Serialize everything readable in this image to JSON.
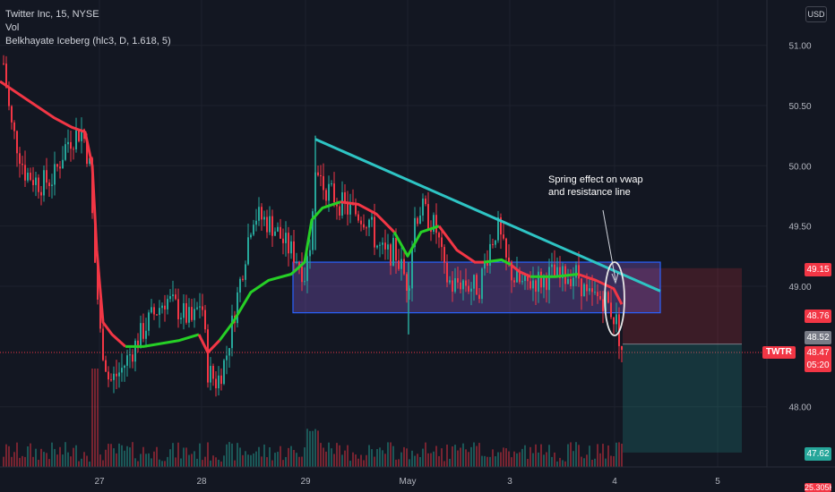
{
  "header": {
    "symbol_line": "Twitter Inc, 15, NYSE",
    "vol_label": "Vol",
    "indicator_line": "Belkhayate Iceberg (hlc3, D, 1.618, 5)",
    "currency": "USD"
  },
  "price_axis": {
    "ticks": [
      "51.00",
      "50.50",
      "50.00",
      "49.50",
      "49.00",
      "48.00"
    ],
    "labels": {
      "target_high": "49.15",
      "level_mid": "48.76",
      "prev_close": "48.52",
      "last_price": "48.47",
      "countdown": "05:20",
      "stop": "47.62",
      "bottom_partial": "25.305K"
    },
    "ticker": "TWTR"
  },
  "time_axis": {
    "ticks": [
      "27",
      "28",
      "29",
      "May",
      "3",
      "4",
      "5"
    ]
  },
  "annotation": {
    "line1": "Spring effect on vwap",
    "line2": "and resistance line"
  },
  "colors": {
    "background": "#131722",
    "up": "#26a69a",
    "down": "#f23645",
    "vwap_down": "#f23645",
    "vwap_up": "#26d026",
    "resistance": "#2ec4c4",
    "box_border": "#2962ff",
    "box_fill": "rgba(126,87,194,0.35)",
    "pos_red": "rgba(242,54,69,0.18)",
    "pos_green": "rgba(38,166,154,0.22)",
    "grid": "#1e222d"
  },
  "chart_data": {
    "type": "candlestick",
    "y_axis_range": [
      47.55,
      51.3
    ],
    "resistance_line": {
      "from": {
        "time": "Apr 29",
        "price": 50.22
      },
      "to": {
        "time": "May 4",
        "price": 48.96
      }
    },
    "range_box": {
      "top": 49.2,
      "bottom": 48.78
    },
    "position": {
      "entry": 48.52,
      "target": 49.15,
      "stop": 47.62
    }
  }
}
